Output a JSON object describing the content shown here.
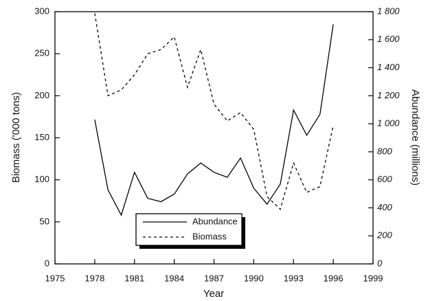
{
  "chart_data": {
    "type": "line",
    "xlabel": "Year",
    "ylabel": "Biomass ('000 tons)",
    "y2label": "Abundance (millions)",
    "x": [
      1978,
      1979,
      1980,
      1981,
      1982,
      1983,
      1984,
      1985,
      1986,
      1987,
      1988,
      1989,
      1990,
      1991,
      1992,
      1993,
      1994,
      1995,
      1996
    ],
    "series": [
      {
        "name": "Abundance",
        "color": "#000000",
        "dash": "solid",
        "axis": "y2",
        "values": [
          1030,
          528,
          348,
          654,
          468,
          444,
          498,
          642,
          720,
          654,
          618,
          756,
          540,
          426,
          570,
          1098,
          918,
          1068,
          1710
        ]
      },
      {
        "name": "Biomass",
        "color": "#000000",
        "dash": "dashed",
        "axis": "y",
        "values": [
          298,
          200,
          207,
          225,
          250,
          255,
          270,
          210,
          255,
          190,
          170,
          180,
          160,
          80,
          65,
          120,
          85,
          92,
          165
        ]
      }
    ],
    "xlim": [
      1975,
      1999
    ],
    "xticks": [
      1975,
      1978,
      1981,
      1984,
      1987,
      1990,
      1993,
      1996,
      1999
    ],
    "ylim": [
      0,
      300
    ],
    "yticks": [
      0,
      50,
      100,
      150,
      200,
      250,
      300
    ],
    "y2lim": [
      0,
      1800
    ],
    "y2ticks": [
      0,
      200,
      400,
      600,
      800,
      {
        "value": 1000,
        "label": "1 000"
      },
      {
        "value": 1200,
        "label": "1 200"
      },
      {
        "value": 1400,
        "label": "1 400"
      },
      {
        "value": 1600,
        "label": "1 600"
      },
      {
        "value": 1800,
        "label": "1 800"
      }
    ],
    "grid": false,
    "legend": "bottom"
  }
}
